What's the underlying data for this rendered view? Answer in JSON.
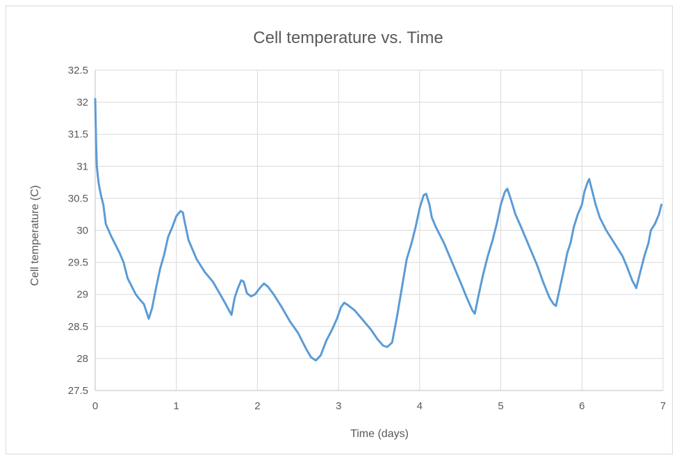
{
  "chart_data": {
    "type": "line",
    "title": "Cell temperature vs. Time",
    "xlabel": "Time (days)",
    "ylabel": "Cell temperature (C)",
    "xlim": [
      0,
      7
    ],
    "ylim": [
      27.5,
      32.5
    ],
    "xticks": [
      "0",
      "1",
      "2",
      "3",
      "4",
      "5",
      "6",
      "7"
    ],
    "yticks": [
      "27.5",
      "28",
      "28.5",
      "29",
      "29.5",
      "30",
      "30.5",
      "31",
      "31.5",
      "32",
      "32.5"
    ],
    "grid": true,
    "legend": "none",
    "series": [
      {
        "color": "#5b9bd5",
        "points": [
          [
            0.0,
            32.05
          ],
          [
            0.01,
            31.4
          ],
          [
            0.02,
            31.0
          ],
          [
            0.04,
            30.75
          ],
          [
            0.07,
            30.55
          ],
          [
            0.1,
            30.4
          ],
          [
            0.13,
            30.1
          ],
          [
            0.2,
            29.9
          ],
          [
            0.3,
            29.65
          ],
          [
            0.35,
            29.5
          ],
          [
            0.4,
            29.25
          ],
          [
            0.5,
            29.0
          ],
          [
            0.55,
            28.92
          ],
          [
            0.6,
            28.85
          ],
          [
            0.66,
            28.62
          ],
          [
            0.7,
            28.78
          ],
          [
            0.75,
            29.1
          ],
          [
            0.8,
            29.4
          ],
          [
            0.85,
            29.62
          ],
          [
            0.9,
            29.9
          ],
          [
            0.95,
            30.05
          ],
          [
            1.0,
            30.22
          ],
          [
            1.05,
            30.3
          ],
          [
            1.08,
            30.28
          ],
          [
            1.1,
            30.15
          ],
          [
            1.15,
            29.85
          ],
          [
            1.25,
            29.55
          ],
          [
            1.35,
            29.35
          ],
          [
            1.45,
            29.2
          ],
          [
            1.55,
            28.98
          ],
          [
            1.6,
            28.87
          ],
          [
            1.65,
            28.75
          ],
          [
            1.68,
            28.68
          ],
          [
            1.72,
            28.95
          ],
          [
            1.76,
            29.1
          ],
          [
            1.8,
            29.22
          ],
          [
            1.83,
            29.2
          ],
          [
            1.87,
            29.02
          ],
          [
            1.92,
            28.97
          ],
          [
            1.97,
            29.0
          ],
          [
            2.03,
            29.1
          ],
          [
            2.08,
            29.17
          ],
          [
            2.13,
            29.12
          ],
          [
            2.2,
            29.0
          ],
          [
            2.3,
            28.8
          ],
          [
            2.4,
            28.58
          ],
          [
            2.5,
            28.4
          ],
          [
            2.6,
            28.15
          ],
          [
            2.66,
            28.02
          ],
          [
            2.72,
            27.97
          ],
          [
            2.78,
            28.05
          ],
          [
            2.85,
            28.28
          ],
          [
            2.92,
            28.45
          ],
          [
            2.98,
            28.62
          ],
          [
            3.03,
            28.8
          ],
          [
            3.07,
            28.87
          ],
          [
            3.12,
            28.83
          ],
          [
            3.2,
            28.75
          ],
          [
            3.3,
            28.6
          ],
          [
            3.4,
            28.45
          ],
          [
            3.48,
            28.3
          ],
          [
            3.55,
            28.2
          ],
          [
            3.6,
            28.18
          ],
          [
            3.66,
            28.25
          ],
          [
            3.72,
            28.65
          ],
          [
            3.78,
            29.1
          ],
          [
            3.84,
            29.55
          ],
          [
            3.9,
            29.8
          ],
          [
            3.95,
            30.05
          ],
          [
            4.0,
            30.35
          ],
          [
            4.05,
            30.55
          ],
          [
            4.08,
            30.57
          ],
          [
            4.12,
            30.4
          ],
          [
            4.15,
            30.2
          ],
          [
            4.2,
            30.05
          ],
          [
            4.3,
            29.8
          ],
          [
            4.4,
            29.5
          ],
          [
            4.5,
            29.2
          ],
          [
            4.58,
            28.95
          ],
          [
            4.65,
            28.75
          ],
          [
            4.68,
            28.7
          ],
          [
            4.72,
            28.95
          ],
          [
            4.78,
            29.3
          ],
          [
            4.84,
            29.6
          ],
          [
            4.9,
            29.85
          ],
          [
            4.95,
            30.1
          ],
          [
            5.0,
            30.4
          ],
          [
            5.05,
            30.6
          ],
          [
            5.08,
            30.65
          ],
          [
            5.12,
            30.5
          ],
          [
            5.18,
            30.25
          ],
          [
            5.25,
            30.05
          ],
          [
            5.35,
            29.75
          ],
          [
            5.45,
            29.45
          ],
          [
            5.52,
            29.2
          ],
          [
            5.6,
            28.95
          ],
          [
            5.65,
            28.85
          ],
          [
            5.68,
            28.82
          ],
          [
            5.72,
            29.05
          ],
          [
            5.78,
            29.4
          ],
          [
            5.82,
            29.65
          ],
          [
            5.86,
            29.8
          ],
          [
            5.9,
            30.05
          ],
          [
            5.95,
            30.25
          ],
          [
            6.0,
            30.4
          ],
          [
            6.03,
            30.6
          ],
          [
            6.07,
            30.75
          ],
          [
            6.09,
            30.8
          ],
          [
            6.12,
            30.65
          ],
          [
            6.17,
            30.4
          ],
          [
            6.22,
            30.2
          ],
          [
            6.3,
            30.0
          ],
          [
            6.4,
            29.8
          ],
          [
            6.5,
            29.6
          ],
          [
            6.55,
            29.45
          ],
          [
            6.62,
            29.22
          ],
          [
            6.67,
            29.1
          ],
          [
            6.72,
            29.35
          ],
          [
            6.77,
            29.6
          ],
          [
            6.82,
            29.8
          ],
          [
            6.85,
            30.0
          ],
          [
            6.9,
            30.1
          ],
          [
            6.95,
            30.25
          ],
          [
            6.98,
            30.4
          ]
        ]
      }
    ]
  }
}
